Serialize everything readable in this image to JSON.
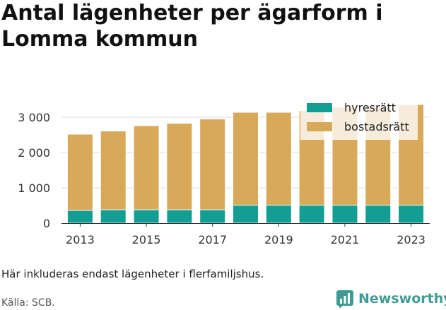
{
  "title": "Antal lägenheter per ägarform i Lomma kommun",
  "note": "Här inkluderas endast lägenheter i flerfamiljshus.",
  "source": "Källa: SCB.",
  "logo_text": "Newsworthy",
  "colors": {
    "hyresratt": "#129e93",
    "bostadsratt": "#d9a95a",
    "grid": "#dddddd",
    "axis": "#333333",
    "logo": "#3f9c95"
  },
  "chart_data": {
    "type": "bar",
    "stacked": true,
    "categories": [
      "2013",
      "2014",
      "2015",
      "2016",
      "2017",
      "2018",
      "2019",
      "2020",
      "2021",
      "2022",
      "2023"
    ],
    "x_tick_labels": [
      "2013",
      "2015",
      "2017",
      "2019",
      "2021",
      "2023"
    ],
    "y_tick_labels": [
      "0",
      "1 000",
      "2 000",
      "3 000"
    ],
    "y_ticks": [
      0,
      1000,
      2000,
      3000
    ],
    "ylim": [
      0,
      3380
    ],
    "grid": true,
    "legend_position": "top-right",
    "series": [
      {
        "name": "hyresrätt",
        "color": "#129e93",
        "values": [
          360,
          380,
          380,
          380,
          380,
          510,
          510,
          510,
          510,
          510,
          510
        ]
      },
      {
        "name": "bostadsrätt",
        "color": "#d9a95a",
        "values": [
          2160,
          2230,
          2380,
          2450,
          2570,
          2630,
          2630,
          2680,
          2780,
          2780,
          2850
        ]
      }
    ]
  }
}
